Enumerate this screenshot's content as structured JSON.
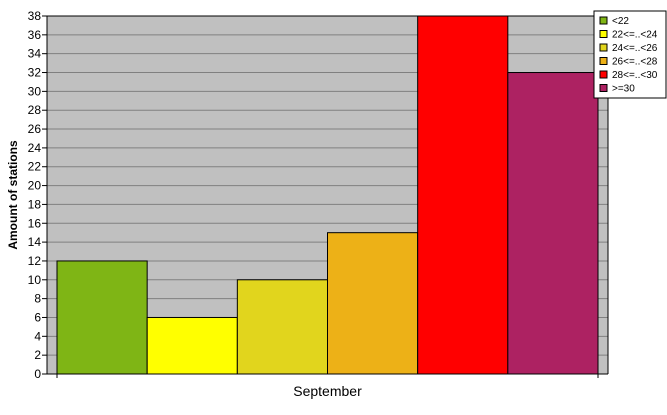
{
  "chart_data": {
    "type": "bar",
    "categories": [
      "September"
    ],
    "series": [
      {
        "name": "<22",
        "values": [
          12
        ],
        "color": "#7fb515"
      },
      {
        "name": "22<=..<24",
        "values": [
          6
        ],
        "color": "#ffff00"
      },
      {
        "name": "24<=..<26",
        "values": [
          10
        ],
        "color": "#e1d51d"
      },
      {
        "name": "26<=..<28",
        "values": [
          15
        ],
        "color": "#edb117"
      },
      {
        "name": "28<=..<30",
        "values": [
          38
        ],
        "color": "#ff0000"
      },
      {
        "name": ">=30",
        "values": [
          32
        ],
        "color": "#ad2262"
      }
    ],
    "title": "",
    "xlabel": "",
    "ylabel": "Amount of stations",
    "ylim": [
      0,
      38
    ],
    "yticks": [
      0,
      2,
      4,
      6,
      8,
      10,
      12,
      14,
      16,
      18,
      20,
      22,
      24,
      26,
      28,
      30,
      32,
      34,
      36,
      38
    ],
    "grid": true,
    "legend_position": "top-right",
    "plot_background": "#c0c0c0"
  }
}
